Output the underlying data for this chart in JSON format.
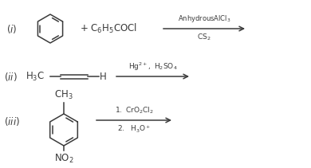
{
  "bg_color": "#ffffff",
  "text_color": "#3a3a3a",
  "figsize": [
    3.9,
    2.11
  ],
  "dpi": 100,
  "lw": 1.1
}
